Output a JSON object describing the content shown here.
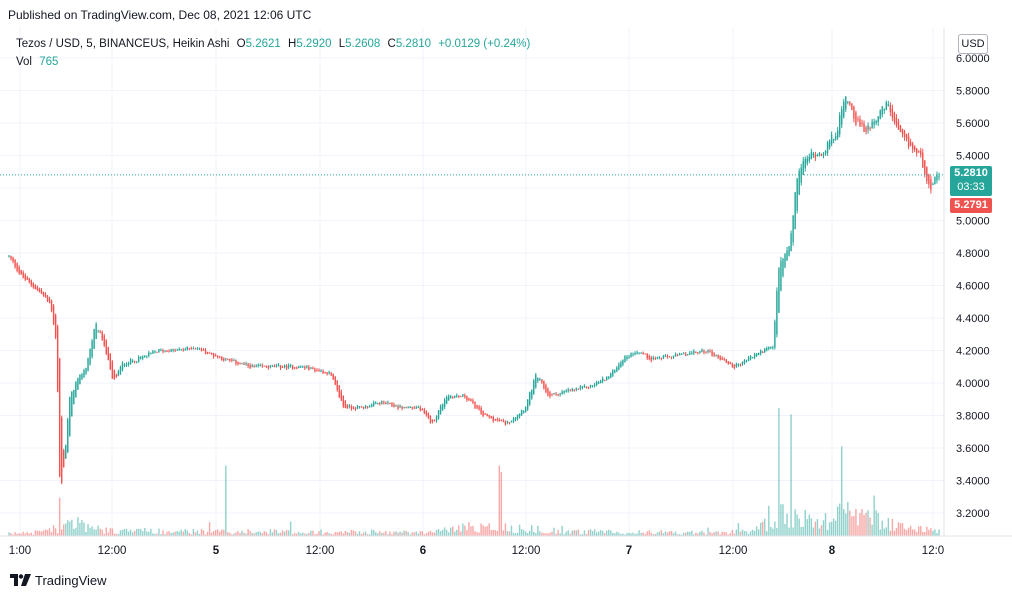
{
  "header": {
    "published": "Published on TradingView.com, Dec 08, 2021 12:06 UTC"
  },
  "legend": {
    "symbol": "Tezos / USD, 5, BINANCEUS, Heikin Ashi",
    "o_label": "O",
    "o_value": "5.2621",
    "h_label": "H",
    "h_value": "5.2920",
    "l_label": "L",
    "l_value": "5.2608",
    "c_label": "C",
    "c_value": "5.2810",
    "change": "+0.0129 (+0.24%)",
    "vol_label": "Vol",
    "vol_value": "765"
  },
  "currency_button": "USD",
  "price_tags": {
    "last_price": "5.2810",
    "countdown": "03:33",
    "second_price": "5.2791"
  },
  "footer": {
    "brand": "TradingView"
  },
  "colors": {
    "up": "#26a69a",
    "down": "#ef5350",
    "grid": "#f0f3fa",
    "text": "#131722",
    "axis_line": "#e0e3eb"
  },
  "chart_data": {
    "type": "candlestick",
    "price_axis": {
      "ticks": [
        "6.0000",
        "5.8000",
        "5.6000",
        "5.4000",
        "5.2000",
        "5.0000",
        "4.8000",
        "4.6000",
        "4.4000",
        "4.2000",
        "4.0000",
        "3.8000",
        "3.6000",
        "3.4000",
        "3.2000"
      ],
      "ylim": [
        3.1,
        6.05
      ],
      "last_price": 5.281
    },
    "time_axis": {
      "labels": [
        "1:00",
        "12:00",
        "5",
        "12:00",
        "6",
        "12:00",
        "7",
        "12:00",
        "8",
        "12:0"
      ],
      "bold_labels": [
        "5",
        "6",
        "7",
        "8"
      ]
    },
    "price_path": [
      [
        0,
        4.78
      ],
      [
        0.013,
        4.66
      ],
      [
        0.035,
        4.55
      ],
      [
        0.045,
        4.48
      ],
      [
        0.051,
        4.25
      ],
      [
        0.055,
        3.3
      ],
      [
        0.06,
        3.55
      ],
      [
        0.065,
        3.9
      ],
      [
        0.072,
        4.0
      ],
      [
        0.083,
        4.1
      ],
      [
        0.093,
        4.36
      ],
      [
        0.102,
        4.25
      ],
      [
        0.112,
        4.0
      ],
      [
        0.122,
        4.12
      ],
      [
        0.14,
        4.15
      ],
      [
        0.16,
        4.2
      ],
      [
        0.18,
        4.2
      ],
      [
        0.2,
        4.22
      ],
      [
        0.215,
        4.18
      ],
      [
        0.235,
        4.14
      ],
      [
        0.26,
        4.1
      ],
      [
        0.29,
        4.1
      ],
      [
        0.315,
        4.1
      ],
      [
        0.345,
        4.06
      ],
      [
        0.36,
        3.85
      ],
      [
        0.38,
        3.85
      ],
      [
        0.4,
        3.88
      ],
      [
        0.42,
        3.85
      ],
      [
        0.44,
        3.85
      ],
      [
        0.455,
        3.75
      ],
      [
        0.47,
        3.92
      ],
      [
        0.49,
        3.92
      ],
      [
        0.51,
        3.8
      ],
      [
        0.535,
        3.75
      ],
      [
        0.555,
        3.85
      ],
      [
        0.567,
        4.05
      ],
      [
        0.58,
        3.92
      ],
      [
        0.6,
        3.95
      ],
      [
        0.625,
        3.98
      ],
      [
        0.645,
        4.04
      ],
      [
        0.66,
        4.15
      ],
      [
        0.675,
        4.2
      ],
      [
        0.69,
        4.15
      ],
      [
        0.71,
        4.16
      ],
      [
        0.73,
        4.18
      ],
      [
        0.75,
        4.2
      ],
      [
        0.78,
        4.1
      ],
      [
        0.81,
        4.2
      ],
      [
        0.822,
        4.22
      ],
      [
        0.827,
        4.7
      ],
      [
        0.84,
        4.85
      ],
      [
        0.848,
        5.3
      ],
      [
        0.86,
        5.4
      ],
      [
        0.875,
        5.42
      ],
      [
        0.89,
        5.55
      ],
      [
        0.9,
        5.78
      ],
      [
        0.91,
        5.62
      ],
      [
        0.92,
        5.55
      ],
      [
        0.935,
        5.65
      ],
      [
        0.945,
        5.72
      ],
      [
        0.955,
        5.55
      ],
      [
        0.965,
        5.48
      ],
      [
        0.98,
        5.4
      ],
      [
        0.99,
        5.2
      ],
      [
        1.0,
        5.28
      ]
    ],
    "volume_profile": [
      [
        0,
        0.02
      ],
      [
        0.05,
        0.05
      ],
      [
        0.06,
        0.15
      ],
      [
        0.1,
        0.05
      ],
      [
        0.2,
        0.04
      ],
      [
        0.35,
        0.04
      ],
      [
        0.45,
        0.03
      ],
      [
        0.5,
        0.09
      ],
      [
        0.55,
        0.07
      ],
      [
        0.6,
        0.04
      ],
      [
        0.75,
        0.03
      ],
      [
        0.8,
        0.04
      ],
      [
        0.83,
        0.18
      ],
      [
        0.88,
        0.14
      ],
      [
        0.9,
        0.24
      ],
      [
        0.95,
        0.1
      ],
      [
        1.0,
        0.05
      ]
    ],
    "volume_spikes": [
      [
        0.054,
        0.3
      ],
      [
        0.233,
        0.55
      ],
      [
        0.527,
        0.55
      ],
      [
        0.53,
        0.5
      ],
      [
        0.827,
        1.0
      ],
      [
        0.84,
        0.95
      ],
      [
        0.895,
        0.7
      ]
    ]
  }
}
